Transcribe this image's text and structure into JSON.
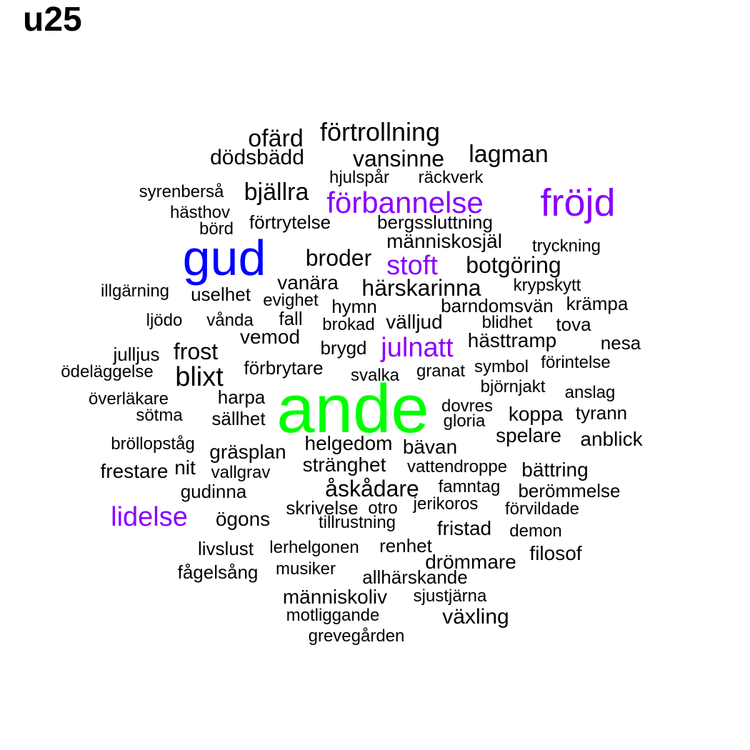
{
  "title": "u25",
  "colors": {
    "largest": "#00ff00",
    "second": "#0000ff",
    "third": "#8a00ff",
    "default": "#000000"
  },
  "words": [
    "ande",
    "gud",
    "fröjd",
    "förbannelse",
    "stoft",
    "julnatt",
    "lidelse",
    "förtrollning",
    "ofärd",
    "dödsbädd",
    "vansinne",
    "lagman",
    "hjulspår",
    "räckverk",
    "syrenberså",
    "bjällra",
    "hästhov",
    "förtrytelse",
    "bergssluttning",
    "börd",
    "människosjäl",
    "tryckning",
    "broder",
    "botgöring",
    "illgärning",
    "uselhet",
    "vanära",
    "härskarinna",
    "krypskytt",
    "evighet",
    "hymn",
    "barndomsvän",
    "krämpa",
    "ljödo",
    "vånda",
    "fall",
    "välljud",
    "brokad",
    "blidhet",
    "tova",
    "vemod",
    "hästtramp",
    "nesa",
    "julljus",
    "frost",
    "brygd",
    "ödeläggelse",
    "förbrytare",
    "svalka",
    "granat",
    "symbol",
    "förintelse",
    "blixt",
    "björnjakt",
    "anslag",
    "överläkare",
    "harpa",
    "dovres",
    "sötma",
    "sällhet",
    "koppa",
    "tyrann",
    "gloria",
    "spelare",
    "anblick",
    "bröllopståg",
    "helgedom",
    "gräsplan",
    "bävan",
    "frestare",
    "nit",
    "stränghet",
    "vattendroppe",
    "vallgrav",
    "bättring",
    "gudinna",
    "åskådare",
    "famntag",
    "berömmelse",
    "skrivelse",
    "otro",
    "jerikoros",
    "förvildade",
    "ögons",
    "tillrustning",
    "fristad",
    "demon",
    "livslust",
    "lerhelgonen",
    "renhet",
    "filosof",
    "drömmare",
    "fågelsång",
    "musiker",
    "allhärskande",
    "människoliv",
    "sjustjärna",
    "motliggande",
    "växling",
    "grevegården"
  ]
}
